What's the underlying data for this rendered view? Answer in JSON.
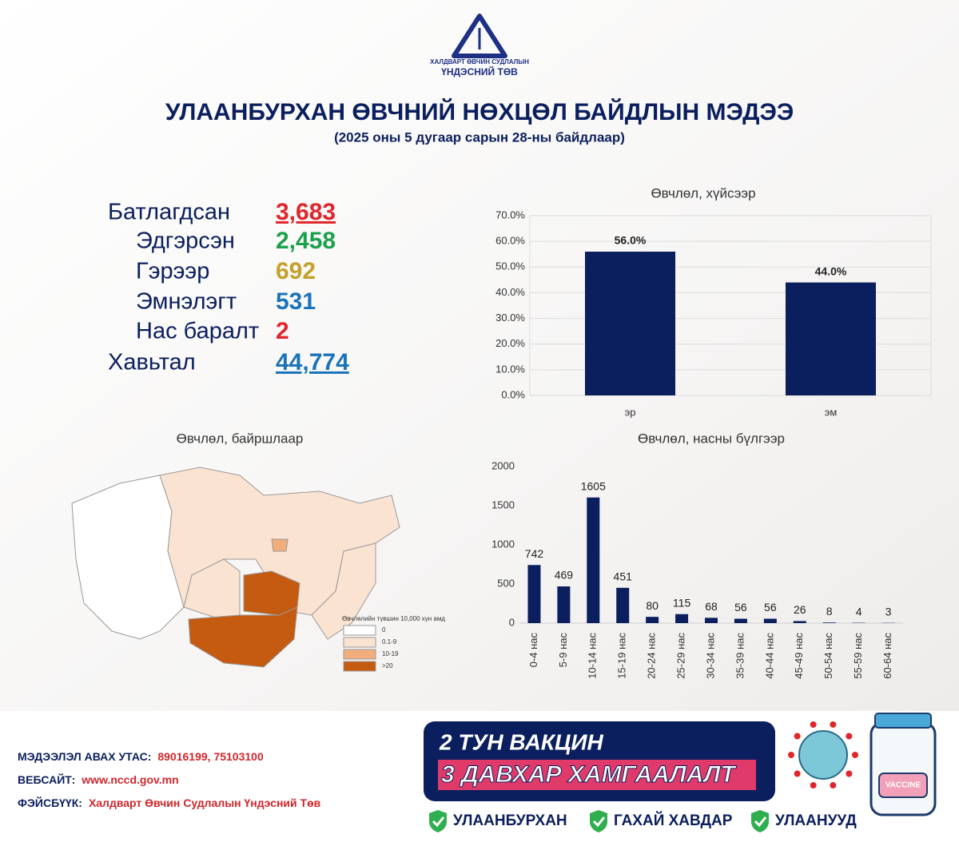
{
  "header": {
    "org_line1": "ХАЛДВАРТ ӨВЧИН СУДЛАЛЫН",
    "org_line2": "ҮНДЭСНИЙ ТӨВ",
    "title": "УЛААНБУРХАН ӨВЧНИЙ НӨХЦӨЛ БАЙДЛЫН МЭДЭЭ",
    "subtitle": "(2025 оны 5 дугаар сарын 28-ны байдлаар)"
  },
  "stats": [
    {
      "label": "Батлагдсан",
      "value": "3,683",
      "color": "#e0262b"
    },
    {
      "label": "Эдгэрсэн",
      "value": "2,458",
      "color": "#1ba04b"
    },
    {
      "label": "Гэрээр",
      "value": "692",
      "color": "#c5a02a"
    },
    {
      "label": "Эмнэлэгт",
      "value": "531",
      "color": "#1b74ba"
    },
    {
      "label": "Нас баралт",
      "value": "2",
      "color": "#e0262b"
    },
    {
      "label": "Хавьтал",
      "value": "44,774",
      "color": "#1b74ba"
    }
  ],
  "chart_data": [
    {
      "type": "bar",
      "title": "Өвчлөл, хүйсээр",
      "categories": [
        "эр",
        "эм"
      ],
      "values": [
        56.0,
        44.0
      ],
      "value_labels": [
        "56.0%",
        "44.0%"
      ],
      "color": "#0b1f5e",
      "ylim": [
        0,
        70
      ],
      "yticks": [
        {
          "value": 0,
          "label": "0.0%"
        },
        {
          "value": 10,
          "label": "10.0%"
        },
        {
          "value": 20,
          "label": "20.0%"
        },
        {
          "value": 30,
          "label": "30.0%"
        },
        {
          "value": 40,
          "label": "40.0%"
        },
        {
          "value": 50,
          "label": "50.0%"
        },
        {
          "value": 60,
          "label": "60.0%"
        },
        {
          "value": 70,
          "label": "70.0%"
        }
      ],
      "grid": true
    },
    {
      "type": "bar",
      "title": "Өвчлөл, насны бүлгээр",
      "categories": [
        "0-4 нас",
        "5-9 нас",
        "10-14 нас",
        "15-19 нас",
        "20-24 нас",
        "25-29 нас",
        "30-34 нас",
        "35-39 нас",
        "40-44 нас",
        "45-49 нас",
        "50-54 нас",
        "55-59 нас",
        "60-64 нас"
      ],
      "values": [
        742,
        469,
        1605,
        451,
        80,
        115,
        68,
        56,
        56,
        26,
        8,
        4,
        3
      ],
      "color": "#0b1f5e",
      "ylim": [
        0,
        2000
      ],
      "yticks": [
        0,
        500,
        1000,
        1500,
        2000
      ],
      "grid": false
    }
  ],
  "map": {
    "title": "Өвчлөл, байршлаар",
    "legend_title": "Өвчлөлийн түвшин 10,000 хүн амд",
    "legend": [
      {
        "label": "0",
        "color": "#ffffff"
      },
      {
        "label": "0.1-9",
        "color": "#fbe3d2"
      },
      {
        "label": "10-19",
        "color": "#f2ad7c"
      },
      {
        "label": ">20",
        "color": "#c55a11"
      }
    ]
  },
  "banner": {
    "line1": "2 ТУН ВАКЦИН",
    "line2": "3 ДАВХАР ХАМГААЛАЛТ",
    "checks": [
      "УЛААНБУРХАН",
      "ГАХАЙ ХАВДАР",
      "УЛААНУУД"
    ],
    "bottle_label": "VACCINE"
  },
  "footer": [
    {
      "label": "МЭДЭЭЛЭЛ АВАХ УТАС:",
      "value": "89016199,  75103100"
    },
    {
      "label": "ВЕБСАЙТ:",
      "value": "www.nccd.gov.mn"
    },
    {
      "label": "ФЭЙСБҮҮК:",
      "value": "Халдварт Өвчин Судлалын Үндэсний Төв"
    }
  ]
}
